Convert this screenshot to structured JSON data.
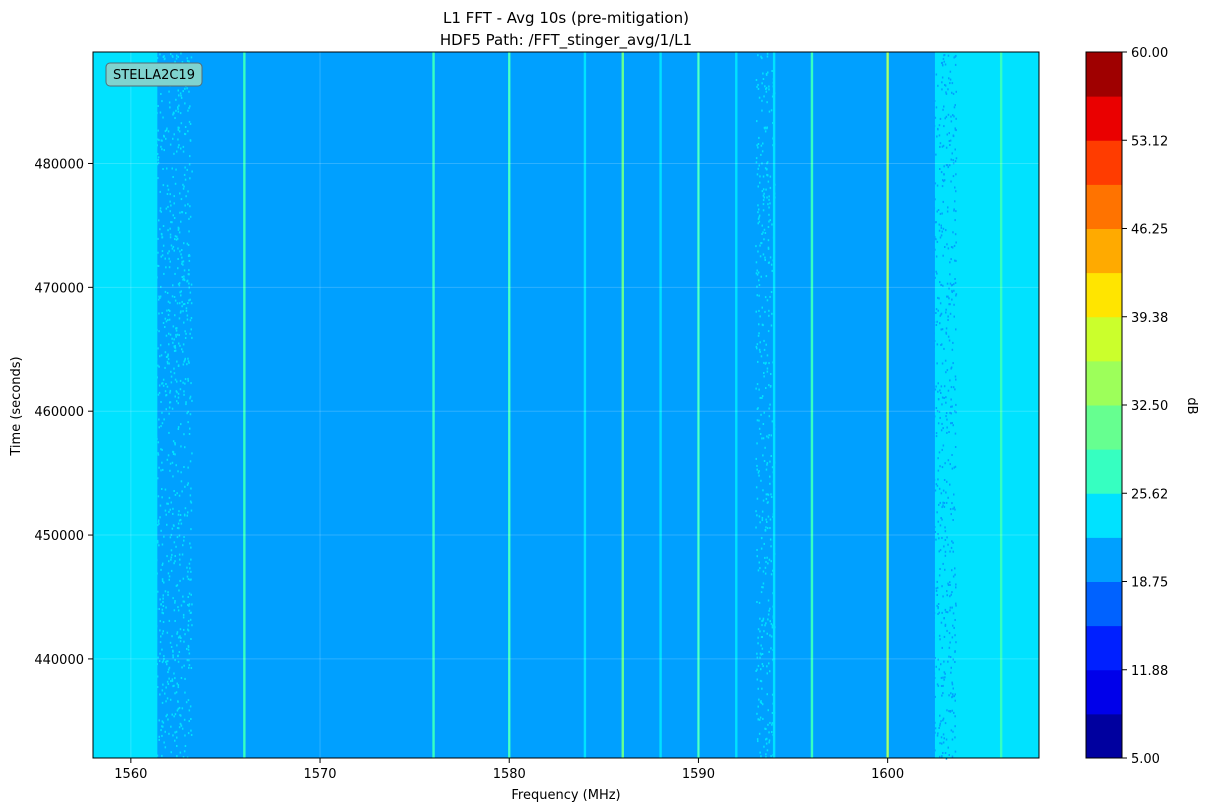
{
  "chart_data": {
    "type": "heatmap",
    "title": "L1 FFT - Avg 10s (pre-mitigation)",
    "subtitle": "HDF5 Path: /FFT_stinger_avg/1/L1",
    "xlabel": "Frequency (MHz)",
    "ylabel": "Time (seconds)",
    "xlim": [
      1558,
      1608
    ],
    "ylim": [
      432000,
      489000
    ],
    "xticks": [
      1560,
      1570,
      1580,
      1590,
      1600
    ],
    "yticks": [
      440000,
      450000,
      460000,
      470000,
      480000
    ],
    "grid": true,
    "colormap": "jet",
    "colorbar": {
      "label": "dB",
      "min": 5.0,
      "max": 60.0,
      "levels": 16,
      "ticks": [
        "5.00",
        "11.88",
        "18.75",
        "25.62",
        "32.50",
        "39.38",
        "46.25",
        "53.12",
        "60.00"
      ],
      "colors": [
        "#00009f",
        "#0000ea",
        "#0020ff",
        "#0062ff",
        "#00a0ff",
        "#00e2ff",
        "#36ffc1",
        "#66ff90",
        "#9dff5a",
        "#cbff2c",
        "#ffe500",
        "#ffaa00",
        "#ff7300",
        "#ff3c00",
        "#ea0000",
        "#9f0000"
      ]
    },
    "background_level_db": 20.5,
    "band_edges": [
      {
        "from": 1558.0,
        "to": 1561.4,
        "db": 24.5
      },
      {
        "from": 1602.5,
        "to": 1608.0,
        "db": 24.5
      }
    ],
    "spectral_lines": [
      {
        "freq": 1566.0,
        "db": 27.0
      },
      {
        "freq": 1576.0,
        "db": 26.5
      },
      {
        "freq": 1580.0,
        "db": 26.0
      },
      {
        "freq": 1584.0,
        "db": 23.5
      },
      {
        "freq": 1586.0,
        "db": 30.0
      },
      {
        "freq": 1588.0,
        "db": 23.5
      },
      {
        "freq": 1590.0,
        "db": 28.0
      },
      {
        "freq": 1592.0,
        "db": 25.5
      },
      {
        "freq": 1594.0,
        "db": 24.5
      },
      {
        "freq": 1596.0,
        "db": 26.5
      },
      {
        "freq": 1600.0,
        "db": 33.0
      },
      {
        "freq": 1606.0,
        "db": 27.0
      }
    ],
    "annotation": "STELLA2C19"
  }
}
